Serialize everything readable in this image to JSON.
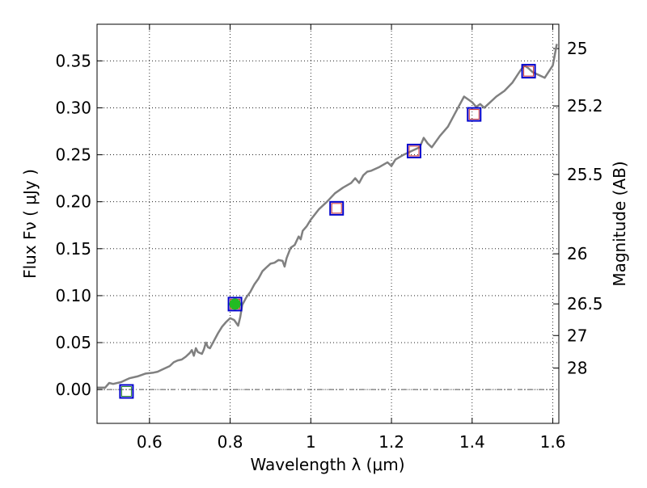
{
  "chart_data": {
    "type": "line",
    "xlabel": "Wavelength  λ (μm)",
    "ylabel": "Flux  Fν  ( μJy )",
    "y2label": "Magnitude (AB)",
    "xlim": [
      0.47,
      1.615
    ],
    "ylim": [
      -0.036,
      0.389
    ],
    "grid": true,
    "x_ticks": [
      {
        "value": 0.6,
        "label": "0.6"
      },
      {
        "value": 0.8,
        "label": "0.8"
      },
      {
        "value": 1.0,
        "label": "1"
      },
      {
        "value": 1.2,
        "label": "1.2"
      },
      {
        "value": 1.4,
        "label": "1.4"
      },
      {
        "value": 1.6,
        "label": "1.6"
      }
    ],
    "y_ticks": [
      {
        "value": 0.0,
        "label": "0.00"
      },
      {
        "value": 0.05,
        "label": "0.05"
      },
      {
        "value": 0.1,
        "label": "0.10"
      },
      {
        "value": 0.15,
        "label": "0.15"
      },
      {
        "value": 0.2,
        "label": "0.20"
      },
      {
        "value": 0.25,
        "label": "0.25"
      },
      {
        "value": 0.3,
        "label": "0.30"
      },
      {
        "value": 0.35,
        "label": "0.35"
      }
    ],
    "mag_ticks": [
      {
        "value": 25,
        "label": "25"
      },
      {
        "value": 25.2,
        "label": "25.2"
      },
      {
        "value": 25.5,
        "label": "25.5"
      },
      {
        "value": 26,
        "label": "26"
      },
      {
        "value": 26.5,
        "label": "26.5"
      },
      {
        "value": 27,
        "label": "27"
      },
      {
        "value": 28,
        "label": "28"
      }
    ],
    "colors": {
      "sed_line": "#808080",
      "observed_box": "#0000cc",
      "model_box_red": "#cc3333",
      "model_box_green": "#2a8a2a",
      "detection_dot": "#22bb22",
      "zero_line": "#555555"
    },
    "series": [
      {
        "type": "line",
        "x": [
          0.47,
          0.49,
          0.5,
          0.51,
          0.53,
          0.54,
          0.55,
          0.57,
          0.59,
          0.61,
          0.62,
          0.63,
          0.65,
          0.66,
          0.67,
          0.68,
          0.69,
          0.7,
          0.705,
          0.71,
          0.715,
          0.72,
          0.73,
          0.735,
          0.74,
          0.745,
          0.75,
          0.76,
          0.77,
          0.78,
          0.79,
          0.8,
          0.81,
          0.82,
          0.825,
          0.83,
          0.84,
          0.85,
          0.86,
          0.87,
          0.88,
          0.89,
          0.9,
          0.91,
          0.92,
          0.93,
          0.935,
          0.94,
          0.95,
          0.96,
          0.97,
          0.975,
          0.98,
          0.99,
          1.0,
          1.02,
          1.04,
          1.06,
          1.08,
          1.1,
          1.11,
          1.12,
          1.13,
          1.14,
          1.15,
          1.17,
          1.19,
          1.2,
          1.21,
          1.23,
          1.25,
          1.27,
          1.28,
          1.29,
          1.3,
          1.32,
          1.34,
          1.36,
          1.38,
          1.4,
          1.41,
          1.42,
          1.43,
          1.44,
          1.46,
          1.48,
          1.5,
          1.52,
          1.53,
          1.54,
          1.55,
          1.56,
          1.58,
          1.6,
          1.61
        ],
        "y": [
          0.002,
          0.002,
          0.007,
          0.006,
          0.008,
          0.01,
          0.012,
          0.014,
          0.017,
          0.018,
          0.019,
          0.021,
          0.025,
          0.029,
          0.031,
          0.032,
          0.035,
          0.039,
          0.042,
          0.036,
          0.044,
          0.04,
          0.038,
          0.043,
          0.05,
          0.045,
          0.044,
          0.052,
          0.06,
          0.067,
          0.072,
          0.076,
          0.074,
          0.068,
          0.077,
          0.09,
          0.098,
          0.104,
          0.112,
          0.118,
          0.126,
          0.13,
          0.134,
          0.135,
          0.138,
          0.137,
          0.131,
          0.14,
          0.151,
          0.154,
          0.163,
          0.16,
          0.169,
          0.174,
          0.181,
          0.192,
          0.2,
          0.209,
          0.215,
          0.22,
          0.225,
          0.22,
          0.228,
          0.232,
          0.233,
          0.237,
          0.242,
          0.238,
          0.245,
          0.25,
          0.254,
          0.258,
          0.268,
          0.262,
          0.258,
          0.27,
          0.28,
          0.296,
          0.312,
          0.306,
          0.301,
          0.304,
          0.3,
          0.304,
          0.312,
          0.318,
          0.327,
          0.34,
          0.345,
          0.342,
          0.338,
          0.336,
          0.332,
          0.345,
          0.368
        ]
      },
      {
        "type": "scatter",
        "marker": "square-observed",
        "x": [
          0.543,
          0.812,
          1.064,
          1.256,
          1.405,
          1.54
        ],
        "y": [
          -0.002,
          0.091,
          0.193,
          0.254,
          0.293,
          0.339
        ]
      },
      {
        "type": "scatter",
        "marker": "square-model",
        "x": [
          0.543,
          0.812,
          1.064,
          1.256,
          1.405,
          1.54
        ],
        "y": [
          -0.002,
          0.091,
          0.193,
          0.254,
          0.293,
          0.339
        ]
      },
      {
        "type": "scatter",
        "marker": "dot",
        "x": [
          0.812
        ],
        "y": [
          0.091
        ]
      }
    ]
  }
}
